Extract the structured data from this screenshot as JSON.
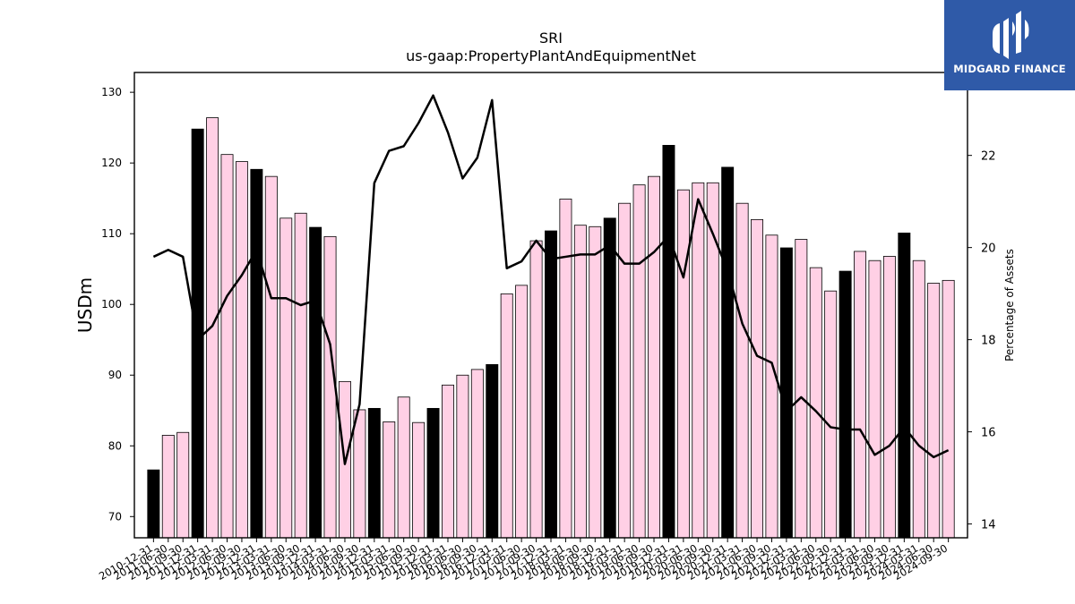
{
  "logo": {
    "text": "MIDGARD FINANCE",
    "icon": "midgard-logo-icon",
    "background": "#2f5aa8"
  },
  "chart_data": {
    "type": "bar",
    "title": "SRI",
    "subtitle": "us-gaap:PropertyPlantAndEquipmentNet",
    "ylabel": "USDm",
    "ylabel_right": "Percentage of Assets",
    "ylim": [
      67,
      132.8
    ],
    "ylim_right": [
      13.7,
      23.8
    ],
    "yticks": [
      70,
      80,
      90,
      100,
      110,
      120,
      130
    ],
    "yticks_right": [
      14,
      16,
      18,
      20,
      22
    ],
    "x_tick_labels": [
      "2010-12-31",
      "2011-06-30",
      "2011-09-30",
      "2011-12-31",
      "2012-03-31",
      "2012-06-30",
      "2012-09-30",
      "2012-12-31",
      "2013-03-31",
      "2013-06-30",
      "2013-09-30",
      "2013-12-31",
      "2014-03-31",
      "2014-06-30",
      "2014-09-30",
      "2014-12-31",
      "2015-03-31",
      "2015-06-30",
      "2015-09-30",
      "2015-12-31",
      "2016-03-31",
      "2016-06-30",
      "2016-09-30",
      "2016-12-31",
      "2017-03-31",
      "2017-06-30",
      "2017-09-30",
      "2017-12-31",
      "2018-03-31",
      "2018-06-30",
      "2018-09-30",
      "2018-12-31",
      "2019-03-31",
      "2019-06-30",
      "2019-09-30",
      "2019-12-31",
      "2020-03-31",
      "2020-06-30",
      "2020-09-30",
      "2020-12-31",
      "2021-03-31",
      "2021-06-30",
      "2021-09-30",
      "2021-12-31",
      "2022-03-31",
      "2022-06-30",
      "2022-09-30",
      "2022-12-31",
      "2023-03-31",
      "2023-06-30",
      "2023-09-30",
      "2023-12-31",
      "2024-03-31",
      "2024-06-30",
      "2024-09-30"
    ],
    "series": [
      {
        "type": "bar",
        "axis": "left",
        "values": [
          76.6,
          81.5,
          81.9,
          124.8,
          126.4,
          121.2,
          120.2,
          119.1,
          118.1,
          112.2,
          112.9,
          110.9,
          109.6,
          89.1,
          85.1,
          85.3,
          83.4,
          86.9,
          83.3,
          85.3,
          88.6,
          90.0,
          90.8,
          91.5,
          101.5,
          102.7,
          109.0,
          110.4,
          114.9,
          111.2,
          111.0,
          112.2,
          114.3,
          116.9,
          118.1,
          122.5,
          116.2,
          117.2,
          117.2,
          119.4,
          114.3,
          112.0,
          109.8,
          108.0,
          109.2,
          105.2,
          101.9,
          104.7,
          107.5,
          106.2,
          106.8,
          110.1,
          106.2,
          103.0,
          103.4
        ],
        "colors": {
          "year_end": "#000000",
          "quarter": "#ffd0e5",
          "edge": "#000000"
        }
      },
      {
        "type": "line",
        "axis": "right",
        "values": [
          19.8,
          19.95,
          19.8,
          18.0,
          18.3,
          18.95,
          19.4,
          19.95,
          18.9,
          18.9,
          18.75,
          18.85,
          17.9,
          15.3,
          16.6,
          21.4,
          22.1,
          22.2,
          22.7,
          23.3,
          22.5,
          21.5,
          21.95,
          23.2,
          19.55,
          19.7,
          20.15,
          19.75,
          19.8,
          19.85,
          19.85,
          20.05,
          19.65,
          19.65,
          19.9,
          20.25,
          19.35,
          21.05,
          20.3,
          19.5,
          18.35,
          17.65,
          17.5,
          16.45,
          16.75,
          16.45,
          16.1,
          16.05,
          16.05,
          15.5,
          15.7,
          16.1,
          15.7,
          15.45,
          15.6
        ],
        "color": "#000000"
      }
    ],
    "grid": false,
    "legend": "none"
  }
}
